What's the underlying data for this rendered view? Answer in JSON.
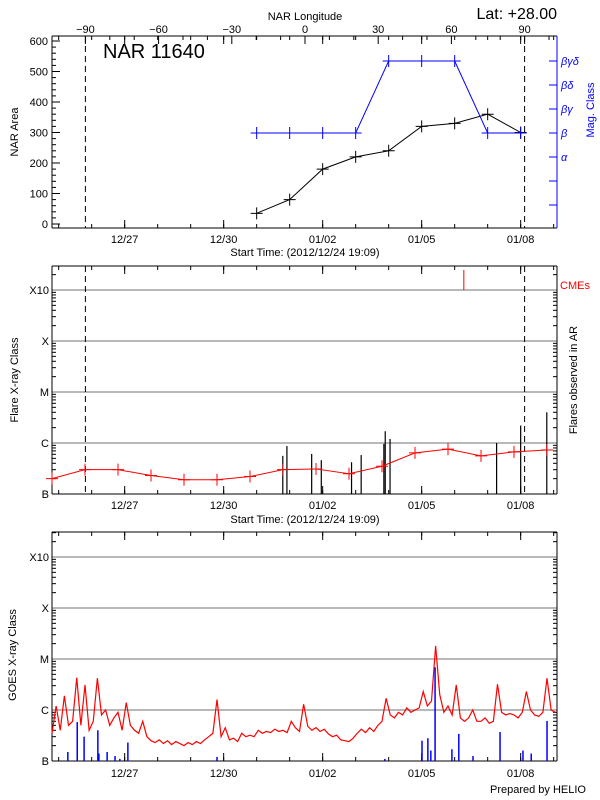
{
  "header": {
    "lat_label": "Lat: +28.00",
    "region_title": "NAR 11640",
    "longitude_axis_label": "NAR Longitude"
  },
  "footer": {
    "credit": "Prepared by HELIO"
  },
  "colors": {
    "area": "#000000",
    "mag_class": "#0000ff",
    "flare_rate": "#ff0000",
    "flares": "#000000",
    "cme": "#ff0000",
    "goes_flux": "#ff0000",
    "goes_events": "#0000ff",
    "grid": "#a0a0a0"
  },
  "chart_data": [
    {
      "type": "line",
      "xlabel": "Start Time: (2012/12/24 19:09)",
      "x_range": [
        "2012-12-24T19:09",
        "2013-01-09T02:30"
      ],
      "x_ticks": [
        {
          "t": "2012-12-27T00:00",
          "label": "12/27"
        },
        {
          "t": "2012-12-30T00:00",
          "label": "12/30"
        },
        {
          "t": "2013-01-02T00:00",
          "label": "01/02"
        },
        {
          "t": "2013-01-05T00:00",
          "label": "01/05"
        },
        {
          "t": "2013-01-08T00:00",
          "label": "01/08"
        }
      ],
      "top_axis": {
        "label": "NAR Longitude",
        "ticks": [
          -90,
          -60,
          -30,
          0,
          30,
          60,
          90
        ],
        "limb_lines": [
          -90,
          90
        ],
        "line_style": "dashed"
      },
      "ylabel": "NAR Area",
      "ylim": [
        0,
        600
      ],
      "y_ticks": [
        0,
        100,
        200,
        300,
        400,
        500,
        600
      ],
      "y2label": "Mag. Class",
      "y2_levels": [
        "",
        "",
        "α",
        "β",
        "βγ",
        "βδ",
        "βγδ"
      ],
      "series": [
        {
          "name": "NAR Area",
          "axis": "left",
          "points": [
            [
              "2012-12-31T00:00",
              35
            ],
            [
              "2013-01-01T00:00",
              80
            ],
            [
              "2013-01-02T00:00",
              180
            ],
            [
              "2013-01-03T00:00",
              220
            ],
            [
              "2013-01-04T00:00",
              240
            ],
            [
              "2013-01-05T00:00",
              320
            ],
            [
              "2013-01-06T00:00",
              330
            ],
            [
              "2013-01-07T00:00",
              360
            ],
            [
              "2013-01-08T00:00",
              300
            ]
          ]
        },
        {
          "name": "Mag. Class",
          "axis": "right",
          "points": [
            [
              "2012-12-31T00:00",
              "β"
            ],
            [
              "2013-01-01T00:00",
              "β"
            ],
            [
              "2013-01-02T00:00",
              "β"
            ],
            [
              "2013-01-03T00:00",
              "β"
            ],
            [
              "2013-01-04T00:00",
              "βγδ"
            ],
            [
              "2013-01-05T00:00",
              "βγδ"
            ],
            [
              "2013-01-06T00:00",
              "βγδ"
            ],
            [
              "2013-01-07T00:00",
              "β"
            ],
            [
              "2013-01-08T00:00",
              "β"
            ]
          ]
        }
      ]
    },
    {
      "type": "line",
      "xlabel": "Start Time: (2012/12/24 19:09)",
      "ylabel": "Flare X-ray Class",
      "y2label": "Flares observed in AR",
      "y_scale": "log",
      "ylim_wm2": [
        1e-07,
        0.003
      ],
      "y_ticks": [
        {
          "v": 1e-07,
          "label": "B"
        },
        {
          "v": 1e-06,
          "label": "C"
        },
        {
          "v": 1e-05,
          "label": "M"
        },
        {
          "v": 0.0001,
          "label": "X"
        },
        {
          "v": 0.001,
          "label": "X10"
        }
      ],
      "grid": true,
      "series": [
        {
          "kind": "line",
          "points": [
            [
              "2012-12-24T19:09",
              2e-07
            ],
            [
              "2012-12-25T19:09",
              3e-07
            ],
            [
              "2012-12-26T19:09",
              3e-07
            ],
            [
              "2012-12-27T19:09",
              2.3e-07
            ],
            [
              "2012-12-28T19:09",
              1.9e-07
            ],
            [
              "2012-12-29T19:09",
              1.9e-07
            ],
            [
              "2012-12-30T19:09",
              2.2e-07
            ],
            [
              "2012-12-31T19:09",
              3e-07
            ],
            [
              "2013-01-01T19:09",
              3.1e-07
            ],
            [
              "2013-01-02T19:09",
              2.5e-07
            ],
            [
              "2013-01-03T19:09",
              3.5e-07
            ],
            [
              "2013-01-04T19:09",
              6.4e-07
            ],
            [
              "2013-01-05T19:09",
              7.6e-07
            ],
            [
              "2013-01-06T19:09",
              5.6e-07
            ],
            [
              "2013-01-07T19:09",
              6.7e-07
            ],
            [
              "2013-01-08T19:09",
              7.3e-07
            ]
          ]
        },
        {
          "kind": "flares",
          "points": [
            [
              "2012-12-31T19:00",
              5.6e-07
            ],
            [
              "2012-12-31T22:00",
              8.7e-07
            ],
            [
              "2013-01-01T16:00",
              6.1e-07
            ],
            [
              "2013-01-01T23:00",
              4.6e-07
            ],
            [
              "2013-01-02T21:00",
              4.2e-07
            ],
            [
              "2013-01-03T04:00",
              5.8e-07
            ],
            [
              "2013-01-03T20:30",
              9.6e-07
            ],
            [
              "2013-01-03T21:30",
              1.7e-06
            ],
            [
              "2013-01-04T01:00",
              1.2e-06
            ],
            [
              "2013-01-07T06:30",
              1e-06
            ],
            [
              "2013-01-08T00:00",
              2.2e-06
            ],
            [
              "2013-01-08T19:00",
              4e-06
            ]
          ]
        },
        {
          "kind": "cmes",
          "label": "CMEs",
          "times": [
            "2013-01-06T06:40"
          ]
        }
      ]
    },
    {
      "type": "line",
      "ylabel": "GOES X-ray Class",
      "y_scale": "log",
      "ylim_wm2": [
        1e-07,
        0.003
      ],
      "y_ticks": [
        {
          "v": 1e-07,
          "label": "B"
        },
        {
          "v": 1e-06,
          "label": "C"
        },
        {
          "v": 1e-05,
          "label": "M"
        },
        {
          "v": 0.0001,
          "label": "X"
        },
        {
          "v": 0.001,
          "label": "X10"
        }
      ],
      "grid": true,
      "goes_flux": {
        "start": "2012-12-24T19:09",
        "step_hours": 3,
        "values": [
          3.5e-07,
          1.2e-06,
          4e-07,
          1.9e-06,
          5e-07,
          6e-07,
          4.3e-06,
          5e-07,
          3.1e-06,
          4e-07,
          6e-07,
          4.2e-06,
          8e-07,
          1e-06,
          5e-07,
          7e-07,
          9e-07,
          4e-07,
          1.4e-06,
          5e-07,
          4e-07,
          3.5e-07,
          6e-07,
          3e-07,
          2.5e-07,
          2.3e-07,
          2.6e-07,
          2.2e-07,
          2.5e-07,
          2.1e-07,
          2.4e-07,
          2.2e-07,
          2e-07,
          2.3e-07,
          2.1e-07,
          2.4e-07,
          2.2e-07,
          2.6e-07,
          3e-07,
          3.5e-07,
          1.6e-06,
          3e-07,
          4.5e-07,
          2.6e-07,
          2.8e-07,
          2.4e-07,
          3.5e-07,
          3e-07,
          3.2e-07,
          3e-07,
          4e-07,
          3.5e-07,
          3.8e-07,
          3.6e-07,
          4.2e-07,
          3.8e-07,
          4e-07,
          3.6e-07,
          6e-07,
          4.5e-07,
          3.8e-07,
          1.3e-06,
          4.8e-07,
          4e-07,
          4.5e-07,
          3.8e-07,
          4.2e-07,
          3.4e-07,
          3e-07,
          3.2e-07,
          2.6e-07,
          2.5e-07,
          2.4e-07,
          2.8e-07,
          3.5e-07,
          4.2e-07,
          3.6e-07,
          4.5e-07,
          3.8e-07,
          5e-07,
          6e-07,
          1.7e-06,
          8e-07,
          7e-07,
          9e-07,
          8e-07,
          1.1e-06,
          9e-07,
          1e-06,
          1.1e-06,
          2.3e-06,
          1.2e-06,
          1.5e-06,
          1.8e-05,
          2e-06,
          9e-07,
          1.2e-06,
          8e-07,
          3.1e-06,
          7e-07,
          6e-07,
          7e-07,
          1e-06,
          6e-07,
          6e-07,
          7e-07,
          5.5e-07,
          6e-07,
          3.2e-06,
          9e-07,
          8e-07,
          8.5e-07,
          8e-07,
          7e-07,
          9e-07,
          2.3e-06,
          1e-06,
          8e-07,
          7.5e-07,
          9e-07,
          4.2e-06,
          1e-06,
          9e-07
        ]
      },
      "goes_events": [
        [
          "2012-12-25T06:40",
          1.5e-07
        ],
        [
          "2012-12-25T13:30",
          5.8e-07
        ],
        [
          "2012-12-25T18:30",
          3e-07
        ],
        [
          "2012-12-26T04:30",
          4e-07
        ],
        [
          "2012-12-26T05:15",
          1.4e-07
        ],
        [
          "2012-12-26T11:15",
          1.5e-07
        ],
        [
          "2012-12-26T17:00",
          1.25e-07
        ],
        [
          "2012-12-26T20:30",
          1.1e-07
        ],
        [
          "2012-12-27T02:20",
          2.3e-07
        ],
        [
          "2012-12-29T19:09",
          1.2e-07
        ],
        [
          "2013-01-03T21:15",
          1.1e-07
        ],
        [
          "2013-01-05T00:15",
          2.5e-07
        ],
        [
          "2013-01-05T04:30",
          2.8e-07
        ],
        [
          "2013-01-05T06:40",
          1.6e-07
        ],
        [
          "2013-01-05T09:45",
          6.9e-06
        ],
        [
          "2013-01-05T22:00",
          1.7e-07
        ],
        [
          "2013-01-06T03:00",
          3.4e-07
        ],
        [
          "2013-01-06T13:20",
          1.25e-07
        ],
        [
          "2013-01-07T09:00",
          3.7e-07
        ],
        [
          "2013-01-08T01:40",
          1.6e-07
        ],
        [
          "2013-01-08T07:40",
          1.4e-07
        ],
        [
          "2013-01-08T19:10",
          6.1e-07
        ]
      ]
    }
  ]
}
